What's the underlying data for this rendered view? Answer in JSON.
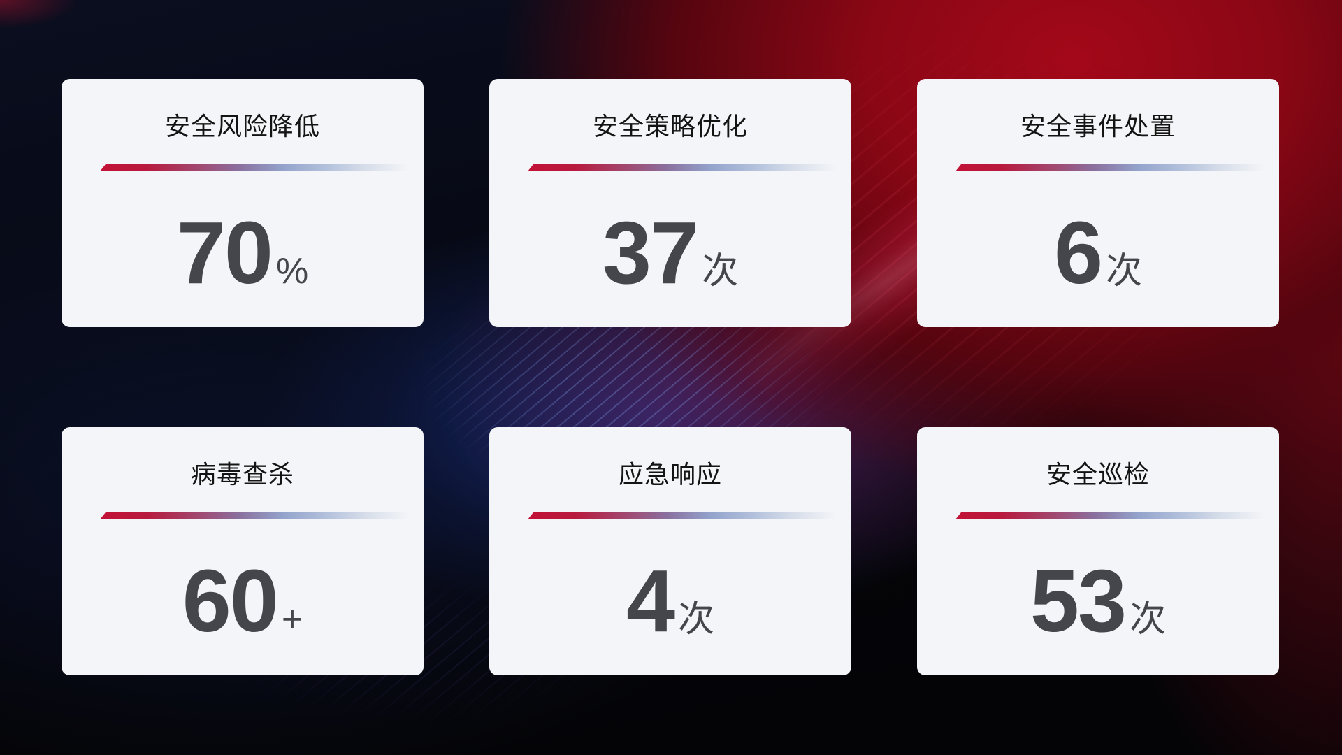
{
  "cards": [
    {
      "title": "安全风险降低",
      "value": "70",
      "suffix": "%"
    },
    {
      "title": "安全策略优化",
      "value": "37",
      "suffix": "次"
    },
    {
      "title": "安全事件处置",
      "value": "6",
      "suffix": "次"
    },
    {
      "title": "病毒查杀",
      "value": "60",
      "suffix": "+"
    },
    {
      "title": "应急响应",
      "value": "4",
      "suffix": "次"
    },
    {
      "title": "安全巡检",
      "value": "53",
      "suffix": "次"
    }
  ],
  "colors": {
    "accent_red": "#c11236",
    "divider_blue": "#9db0d4",
    "card_background": "#f4f5f8",
    "title_text": "#141414",
    "value_text": "#45464b",
    "background_red_glow": "#a30819",
    "background_blue_glow": "#1c348a"
  }
}
